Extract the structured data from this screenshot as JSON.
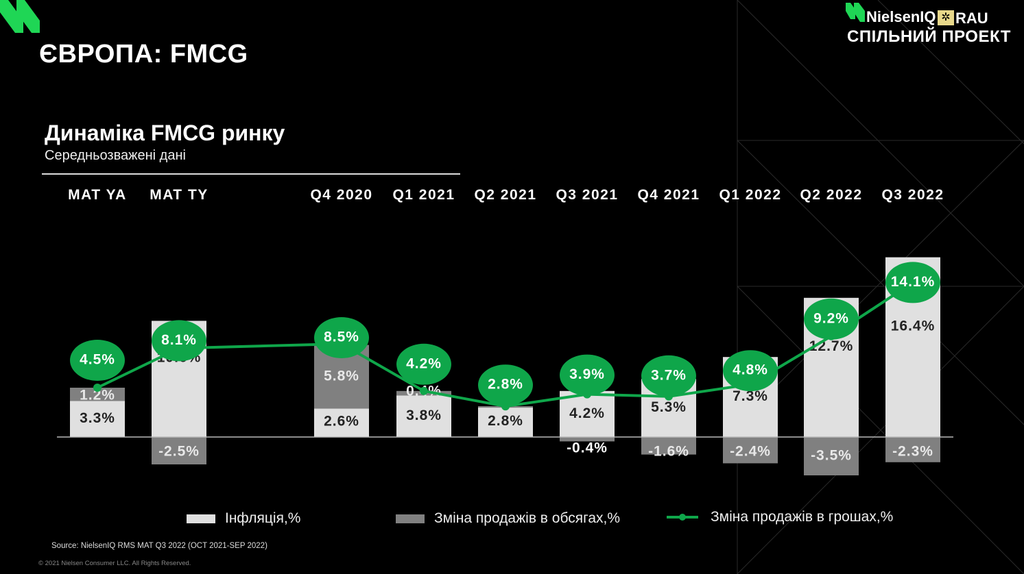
{
  "header": {
    "title": "ЄВРОПА: FMCG",
    "logo_brand": "NielsenIQ",
    "logo_partner": "RAU",
    "logo_tagline": "СПІЛЬНИЙ ПРОЕКТ"
  },
  "chart_data": {
    "type": "bar",
    "stacked": true,
    "title": "Динаміка FMCG ринку",
    "subtitle": "Середньозважені дані",
    "categories": [
      "MAT YA",
      "MAT TY",
      "Q4 2020",
      "Q1 2021",
      "Q2 2021",
      "Q3 2021",
      "Q4 2021",
      "Q1 2022",
      "Q2 2022",
      "Q3 2022"
    ],
    "series": [
      {
        "name": "Інфляція,%",
        "type": "bar",
        "color": "#e0e0e0",
        "values": [
          3.3,
          10.6,
          2.6,
          3.8,
          2.8,
          4.2,
          5.3,
          7.3,
          12.7,
          16.4
        ],
        "labels": [
          "3.3%",
          "10.6%",
          "2.6%",
          "3.8%",
          "2.8%",
          "4.2%",
          "5.3%",
          "7.3%",
          "12.7%",
          "16.4%"
        ]
      },
      {
        "name": "Зміна продажів в обсягах,%",
        "type": "bar",
        "color": "#808080",
        "values": [
          1.2,
          -2.5,
          5.8,
          0.4,
          0.0,
          -0.4,
          -1.6,
          -2.4,
          -3.5,
          -2.3
        ],
        "labels": [
          "1.2%",
          "-2.5%",
          "5.8%",
          "0.4%",
          "",
          "-0.4%",
          "-1.6%",
          "-2.4%",
          "-3.5%",
          "-2.3%"
        ]
      },
      {
        "name": "Зміна продажів в грошах,%",
        "type": "line",
        "color": "#0fa64a",
        "values": [
          4.5,
          8.1,
          8.5,
          4.2,
          2.8,
          3.9,
          3.7,
          4.8,
          9.2,
          14.1
        ],
        "labels": [
          "4.5%",
          "8.1%",
          "8.5%",
          "4.2%",
          "2.8%",
          "3.9%",
          "3.7%",
          "4.8%",
          "9.2%",
          "14.1%"
        ]
      }
    ],
    "legend_position": "bottom",
    "grid": false
  },
  "footer": {
    "source": "Source: NielsenIQ RMS MAT Q3 2022  (OCT 2021-SEP 2022)",
    "copyright": "© 2021 Nielsen Consumer LLC. All Rights Reserved."
  }
}
